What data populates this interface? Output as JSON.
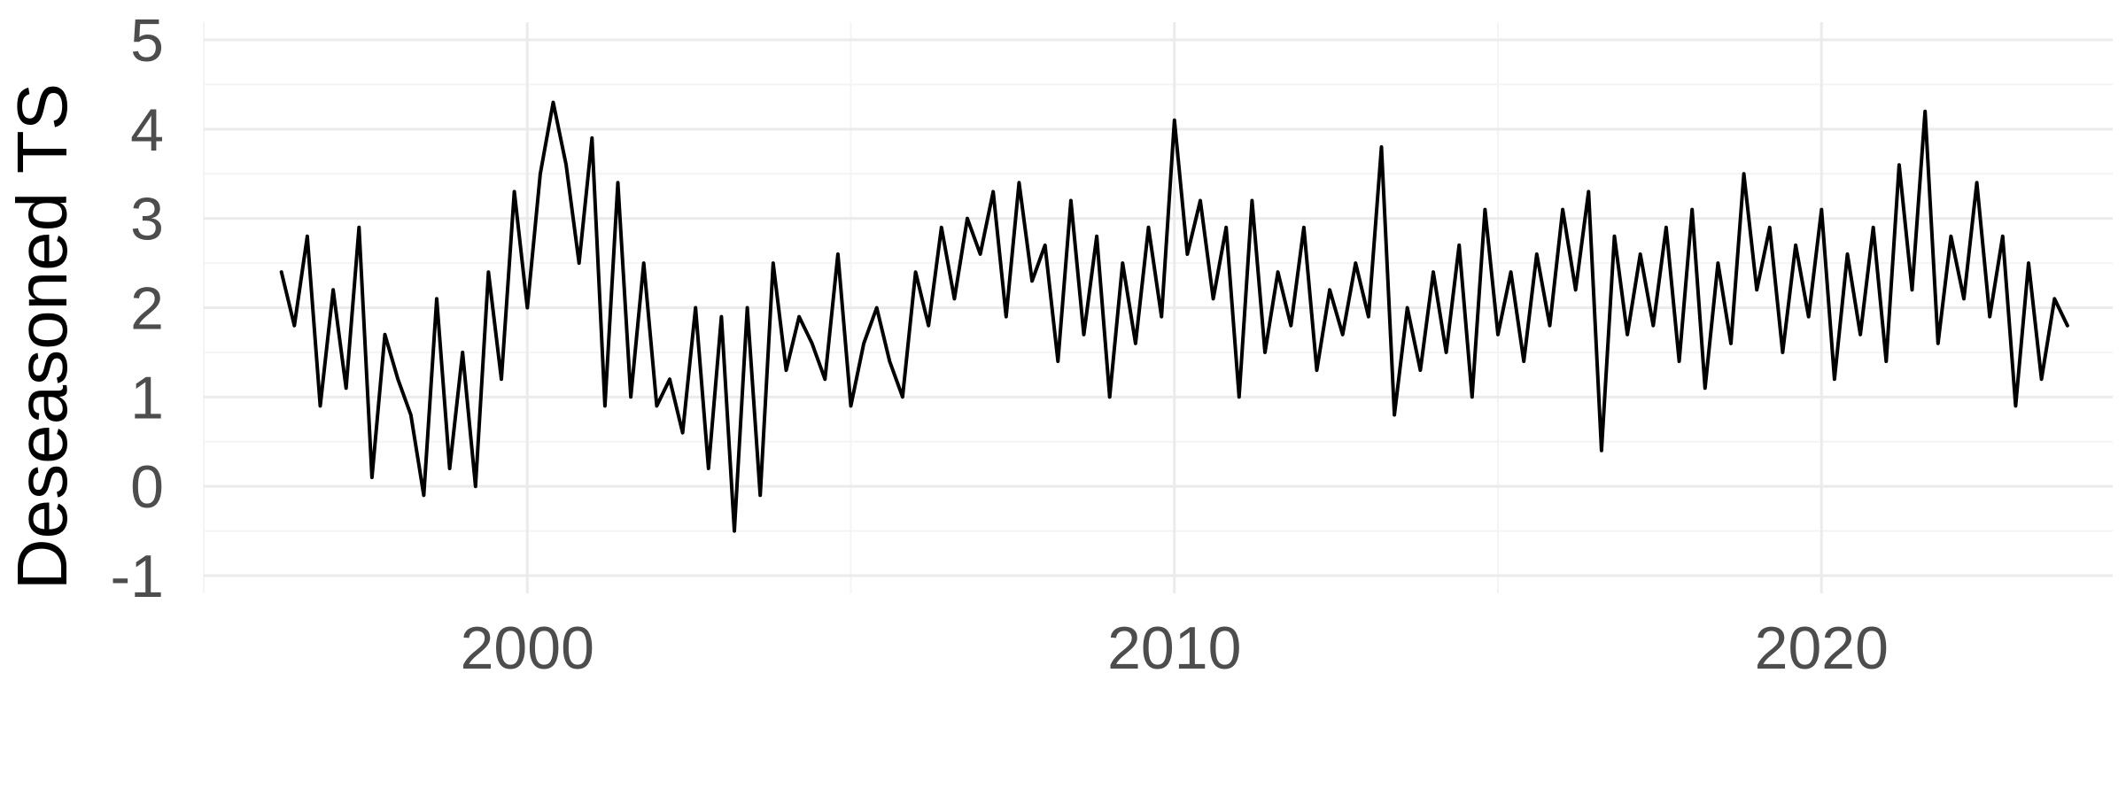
{
  "chart_data": {
    "type": "line",
    "title": "",
    "xlabel": "",
    "ylabel": "Deseasoned TS",
    "xlim": [
      1995.0,
      2024.5
    ],
    "ylim": [
      -1,
      5
    ],
    "x_ticks": [
      2000,
      2010,
      2020
    ],
    "y_ticks": [
      -1,
      0,
      1,
      2,
      3,
      4,
      5
    ],
    "grid": true,
    "legend": "none",
    "colors": {
      "line": "#000000",
      "grid_major": "#ebebeb",
      "grid_minor": "#f4f4f4",
      "tick_text": "#4d4d4d"
    },
    "series": [
      {
        "x": [
          1996.2,
          1996.4,
          1996.6,
          1996.8,
          1997.0,
          1997.2,
          1997.4,
          1997.6,
          1997.8,
          1998.0,
          1998.2,
          1998.4,
          1998.6,
          1998.8,
          1999.0,
          1999.2,
          1999.4,
          1999.6,
          1999.8,
          2000.0,
          2000.2,
          2000.4,
          2000.6,
          2000.8,
          2001.0,
          2001.2,
          2001.4,
          2001.6,
          2001.8,
          2002.0,
          2002.2,
          2002.4,
          2002.6,
          2002.8,
          2003.0,
          2003.2,
          2003.4,
          2003.6,
          2003.8,
          2004.0,
          2004.2,
          2004.4,
          2004.6,
          2004.8,
          2005.0,
          2005.2,
          2005.4,
          2005.6,
          2005.8,
          2006.0,
          2006.2,
          2006.4,
          2006.6,
          2006.8,
          2007.0,
          2007.2,
          2007.4,
          2007.6,
          2007.8,
          2008.0,
          2008.2,
          2008.4,
          2008.6,
          2008.8,
          2009.0,
          2009.2,
          2009.4,
          2009.6,
          2009.8,
          2010.0,
          2010.2,
          2010.4,
          2010.6,
          2010.8,
          2011.0,
          2011.2,
          2011.4,
          2011.6,
          2011.8,
          2012.0,
          2012.2,
          2012.4,
          2012.6,
          2012.8,
          2013.0,
          2013.2,
          2013.4,
          2013.6,
          2013.8,
          2014.0,
          2014.2,
          2014.4,
          2014.6,
          2014.8,
          2015.0,
          2015.2,
          2015.4,
          2015.6,
          2015.8,
          2016.0,
          2016.2,
          2016.4,
          2016.6,
          2016.8,
          2017.0,
          2017.2,
          2017.4,
          2017.6,
          2017.8,
          2018.0,
          2018.2,
          2018.4,
          2018.6,
          2018.8,
          2019.0,
          2019.2,
          2019.4,
          2019.6,
          2019.8,
          2020.0,
          2020.2,
          2020.4,
          2020.6,
          2020.8,
          2021.0,
          2021.2,
          2021.4,
          2021.6,
          2021.8,
          2022.0,
          2022.2,
          2022.4,
          2022.6,
          2022.8,
          2023.0,
          2023.2,
          2023.4,
          2023.6,
          2023.8
        ],
        "values": [
          2.4,
          1.8,
          2.8,
          0.9,
          2.2,
          1.1,
          2.9,
          0.1,
          1.7,
          1.2,
          0.8,
          -0.1,
          2.1,
          0.2,
          1.5,
          0.0,
          2.4,
          1.2,
          3.3,
          2.0,
          3.5,
          4.3,
          3.6,
          2.5,
          3.9,
          0.9,
          3.4,
          1.0,
          2.5,
          0.9,
          1.2,
          0.6,
          2.0,
          0.2,
          1.9,
          -0.5,
          2.0,
          -0.1,
          2.5,
          1.3,
          1.9,
          1.6,
          1.2,
          2.6,
          0.9,
          1.6,
          2.0,
          1.4,
          1.0,
          2.4,
          1.8,
          2.9,
          2.1,
          3.0,
          2.6,
          3.3,
          1.9,
          3.4,
          2.3,
          2.7,
          1.4,
          3.2,
          1.7,
          2.8,
          1.0,
          2.5,
          1.6,
          2.9,
          1.9,
          4.1,
          2.6,
          3.2,
          2.1,
          2.9,
          1.0,
          3.2,
          1.5,
          2.4,
          1.8,
          2.9,
          1.3,
          2.2,
          1.7,
          2.5,
          1.9,
          3.8,
          0.8,
          2.0,
          1.3,
          2.4,
          1.5,
          2.7,
          1.0,
          3.1,
          1.7,
          2.4,
          1.4,
          2.6,
          1.8,
          3.1,
          2.2,
          3.3,
          0.4,
          2.8,
          1.7,
          2.6,
          1.8,
          2.9,
          1.4,
          3.1,
          1.1,
          2.5,
          1.6,
          3.5,
          2.2,
          2.9,
          1.5,
          2.7,
          1.9,
          3.1,
          1.2,
          2.6,
          1.7,
          2.9,
          1.4,
          3.6,
          2.2,
          4.2,
          1.6,
          2.8,
          2.1,
          3.4,
          1.9,
          2.8,
          0.9,
          2.5,
          1.2,
          2.1,
          1.8
        ],
        "line_width": 4
      }
    ]
  }
}
